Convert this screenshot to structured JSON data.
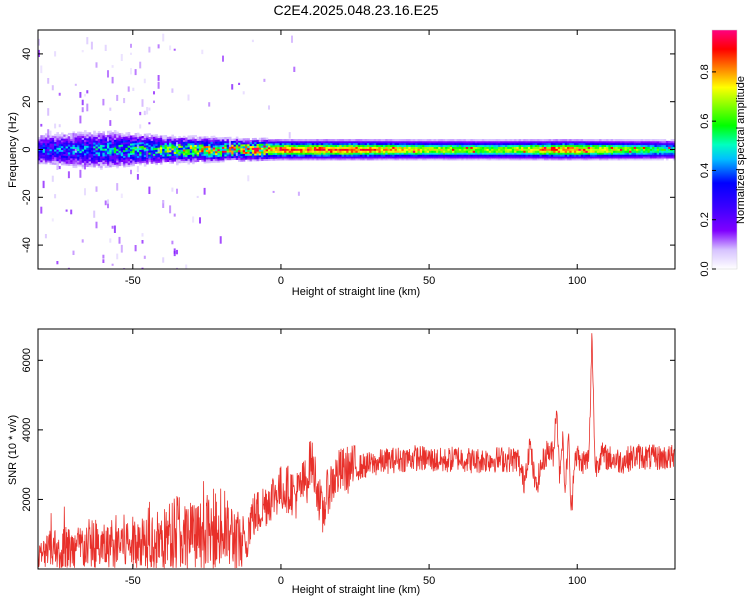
{
  "title": "C2E4.2025.048.23.16.E25",
  "chart_data": [
    {
      "type": "heatmap",
      "xlabel": "Height of straight line (km)",
      "ylabel": "Frequency (Hz)",
      "xlim": [
        -82,
        133
      ],
      "ylim": [
        -50,
        50
      ],
      "xticks": [
        -50,
        0,
        50,
        100
      ],
      "yticks": [
        -40,
        -20,
        0,
        20,
        40
      ],
      "colorbar": {
        "label": "Normalized spectral amplitude",
        "range": [
          0,
          0.97
        ],
        "ticks": [
          0.0,
          0.2,
          0.4,
          0.6,
          0.8
        ],
        "tick_labels": [
          "0.0",
          "0.2",
          "0.4",
          "0.6",
          "0.8"
        ],
        "colormap": "rainbow (white-violet-blue-cyan-green-yellow-orange-red-magenta)"
      },
      "description_points": [
        {
          "x": -80,
          "halfwidth_hz": 6,
          "peak": 0.35
        },
        {
          "x": -60,
          "halfwidth_hz": 7,
          "peak": 0.4
        },
        {
          "x": -40,
          "halfwidth_hz": 5,
          "peak": 0.55
        },
        {
          "x": -20,
          "halfwidth_hz": 4,
          "peak": 0.75
        },
        {
          "x": 0,
          "halfwidth_hz": 3.5,
          "peak": 0.9
        },
        {
          "x": 25,
          "halfwidth_hz": 3.5,
          "peak": 0.9
        },
        {
          "x": 50,
          "halfwidth_hz": 3.5,
          "peak": 0.75
        },
        {
          "x": 75,
          "halfwidth_hz": 3.5,
          "peak": 0.7
        },
        {
          "x": 95,
          "halfwidth_hz": 3.5,
          "peak": 0.9
        },
        {
          "x": 133,
          "halfwidth_hz": 3.5,
          "peak": 0.55
        }
      ]
    },
    {
      "type": "line",
      "xlabel": "Height of straight line (km)",
      "ylabel": "SNR (10 * v/v)",
      "xlim": [
        -82,
        133
      ],
      "ylim": [
        0,
        6900
      ],
      "xticks": [
        -50,
        0,
        50,
        100
      ],
      "yticks": [
        2000,
        4000,
        6000
      ],
      "color": "#e8302a",
      "series": [
        {
          "x": [
            -82,
            -75,
            -70,
            -65,
            -60,
            -55,
            -50,
            -45,
            -40,
            -35,
            -30,
            -25,
            -20,
            -15,
            -12,
            -10,
            -8,
            -5,
            -3,
            0,
            3,
            5,
            7,
            9,
            10,
            12,
            14,
            16,
            18,
            20,
            25,
            30,
            35,
            40,
            45,
            50,
            55,
            60,
            65,
            70,
            75,
            80,
            82,
            84,
            86,
            88,
            90,
            92,
            93,
            94,
            95,
            96,
            97,
            98,
            99,
            100,
            101,
            102,
            103,
            104,
            105,
            106,
            107,
            108,
            110,
            115,
            120,
            125,
            133
          ],
          "y": [
            350,
            650,
            550,
            700,
            600,
            780,
            720,
            850,
            800,
            1100,
            900,
            950,
            1000,
            900,
            750,
            1500,
            1600,
            1900,
            2100,
            2300,
            2300,
            2100,
            2400,
            2600,
            3200,
            2500,
            1500,
            2300,
            2600,
            2800,
            2900,
            3000,
            3100,
            3150,
            3200,
            3150,
            3100,
            3200,
            3100,
            3150,
            3150,
            3150,
            2500,
            3600,
            2300,
            3000,
            3400,
            3300,
            4800,
            2700,
            3800,
            2200,
            3900,
            1500,
            3200,
            3300,
            3000,
            3100,
            3100,
            3200,
            6800,
            2900,
            3100,
            3300,
            3200,
            3100,
            3250,
            3200,
            3200
          ]
        }
      ]
    }
  ]
}
